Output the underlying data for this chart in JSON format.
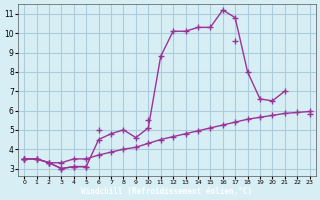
{
  "background_color": "#d7eef4",
  "grid_color": "#aaccdd",
  "line_color": "#993399",
  "xlabel": "Windchill (Refroidissement éolien,°C)",
  "ylabel_ticks": [
    3,
    4,
    5,
    6,
    7,
    8,
    9,
    10,
    11
  ],
  "xlabel_ticks": [
    0,
    1,
    2,
    3,
    4,
    5,
    6,
    7,
    8,
    9,
    10,
    11,
    12,
    13,
    14,
    15,
    16,
    17,
    18,
    19,
    20,
    21,
    22,
    23
  ],
  "xlim": [
    -0.5,
    23.5
  ],
  "ylim": [
    2.6,
    11.5
  ],
  "lines": [
    {
      "x": [
        0,
        1,
        2,
        3,
        4,
        5,
        6,
        7,
        8,
        9,
        10,
        11,
        12,
        13,
        14,
        15,
        16,
        17,
        18,
        19,
        20,
        21,
        22,
        23
      ],
      "y": [
        3.5,
        3.5,
        3.3,
        3.0,
        3.1,
        3.1,
        null,
        null,
        null,
        null,
        null,
        null,
        null,
        null,
        null,
        null,
        null,
        null,
        null,
        null,
        null,
        null,
        null,
        null
      ]
    },
    {
      "x": [
        0,
        1,
        2,
        3,
        4,
        5,
        6,
        7,
        8,
        9,
        10,
        11,
        12,
        13,
        14,
        15,
        16,
        17,
        18,
        19,
        20,
        21,
        22,
        23
      ],
      "y": [
        3.5,
        3.5,
        3.3,
        3.0,
        3.1,
        3.1,
        4.5,
        4.8,
        5.0,
        4.6,
        5.1,
        8.8,
        10.1,
        10.1,
        10.3,
        10.3,
        11.2,
        10.8,
        8.0,
        6.6,
        6.5,
        7.0,
        null,
        null
      ]
    },
    {
      "x": [
        0,
        1,
        2,
        3,
        4,
        5,
        6,
        7,
        8,
        9,
        10,
        11,
        12,
        13,
        14,
        15,
        16,
        17,
        18,
        19,
        20,
        21,
        22,
        23
      ],
      "y": [
        3.5,
        null,
        null,
        null,
        null,
        null,
        5.0,
        null,
        null,
        null,
        5.5,
        null,
        null,
        null,
        null,
        null,
        null,
        9.6,
        null,
        null,
        null,
        null,
        null,
        5.8
      ]
    },
    {
      "x": [
        0,
        1,
        2,
        3,
        4,
        5,
        6,
        7,
        8,
        9,
        10,
        11,
        12,
        13,
        14,
        15,
        16,
        17,
        18,
        19,
        20,
        21,
        22,
        23
      ],
      "y": [
        3.5,
        3.5,
        3.3,
        3.3,
        3.5,
        3.5,
        3.7,
        3.85,
        4.0,
        4.1,
        4.3,
        4.5,
        4.65,
        4.8,
        4.95,
        5.1,
        5.25,
        5.4,
        5.55,
        5.65,
        5.75,
        5.85,
        5.9,
        5.95
      ]
    }
  ]
}
